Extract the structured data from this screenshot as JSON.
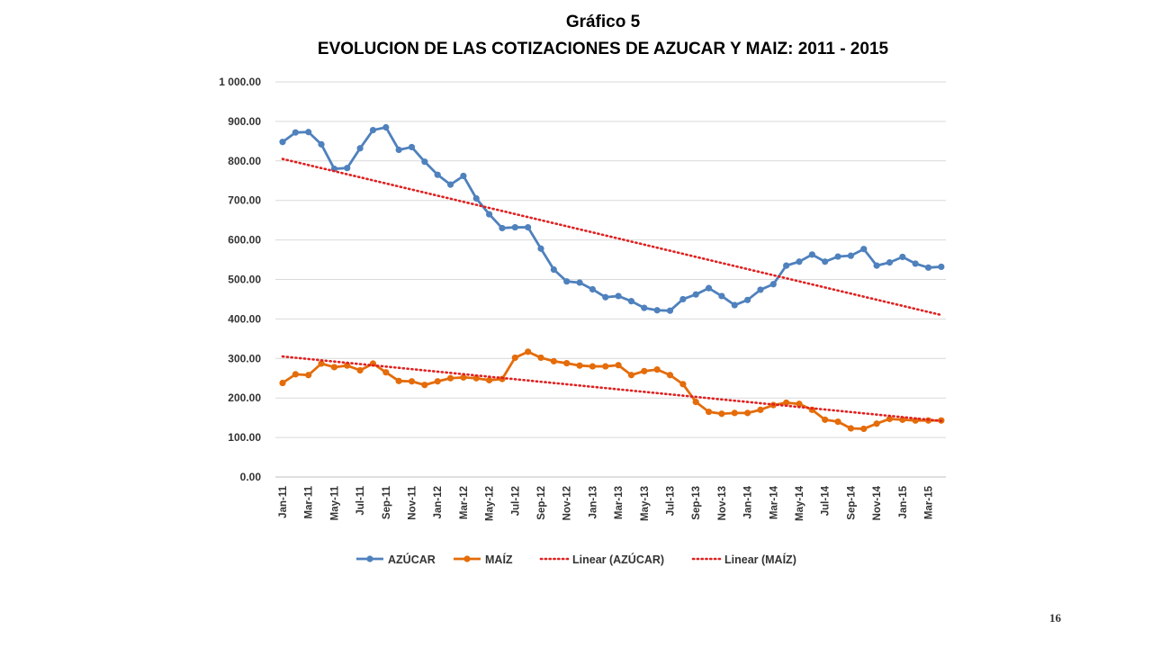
{
  "slide": {
    "page_number": "16"
  },
  "chart_data": {
    "type": "line",
    "title": "Gráfico 5",
    "subtitle": "EVOLUCION DE LAS COTIZACIONES DE AZUCAR Y MAIZ: 2011 - 2015",
    "xlabel": "",
    "ylabel": "",
    "ylim": [
      0,
      1000
    ],
    "yticks": [
      "0.00",
      "100.00",
      "200.00",
      "300.00",
      "400.00",
      "500.00",
      "600.00",
      "700.00",
      "800.00",
      "900.00",
      "1 000.00"
    ],
    "grid": true,
    "legend_position": "bottom",
    "x": [
      "Jan-11",
      "Feb-11",
      "Mar-11",
      "Apr-11",
      "May-11",
      "Jun-11",
      "Jul-11",
      "Aug-11",
      "Sep-11",
      "Oct-11",
      "Nov-11",
      "Dec-11",
      "Jan-12",
      "Feb-12",
      "Mar-12",
      "Apr-12",
      "May-12",
      "Jun-12",
      "Jul-12",
      "Aug-12",
      "Sep-12",
      "Oct-12",
      "Nov-12",
      "Dec-12",
      "Jan-13",
      "Feb-13",
      "Mar-13",
      "Apr-13",
      "May-13",
      "Jun-13",
      "Jul-13",
      "Aug-13",
      "Sep-13",
      "Oct-13",
      "Nov-13",
      "Dec-13",
      "Jan-14",
      "Feb-14",
      "Mar-14",
      "Apr-14",
      "May-14",
      "Jun-14",
      "Jul-14",
      "Aug-14",
      "Sep-14",
      "Oct-14",
      "Nov-14",
      "Dec-14",
      "Jan-15",
      "Feb-15",
      "Mar-15",
      "Apr-15"
    ],
    "x_tick_labels": [
      "Jan-11",
      "Mar-11",
      "May-11",
      "Jul-11",
      "Sep-11",
      "Nov-11",
      "Jan-12",
      "Mar-12",
      "May-12",
      "Jul-12",
      "Sep-12",
      "Nov-12",
      "Jan-13",
      "Mar-13",
      "May-13",
      "Jul-13",
      "Sep-13",
      "Nov-13",
      "Jan-14",
      "Mar-14",
      "May-14",
      "Jul-14",
      "Sep-14",
      "Nov-14",
      "Jan-15",
      "Mar-15"
    ],
    "series": [
      {
        "name": "AZÚCAR",
        "color": "#4f81bd",
        "style": "line-marker",
        "values": [
          848,
          872,
          873,
          842,
          780,
          782,
          832,
          878,
          885,
          828,
          835,
          798,
          765,
          740,
          762,
          705,
          665,
          630,
          632,
          632,
          578,
          525,
          495,
          492,
          475,
          455,
          458,
          445,
          428,
          422,
          421,
          450,
          462,
          478,
          458,
          435,
          448,
          474,
          488,
          535,
          545,
          563,
          545,
          558,
          560,
          577,
          535,
          543,
          557,
          540,
          530,
          532
        ]
      },
      {
        "name": "MAÍZ",
        "color": "#e46c0a",
        "style": "line-marker",
        "values": [
          238,
          260,
          258,
          287,
          278,
          282,
          270,
          287,
          265,
          243,
          242,
          233,
          242,
          250,
          252,
          250,
          245,
          248,
          302,
          317,
          302,
          293,
          288,
          282,
          280,
          280,
          283,
          258,
          268,
          272,
          258,
          235,
          190,
          165,
          160,
          162,
          162,
          170,
          182,
          188,
          185,
          170,
          145,
          140,
          123,
          122,
          135,
          147,
          145,
          143,
          143,
          143
        ]
      },
      {
        "name": "Linear (AZÚCAR)",
        "color": "#e02020",
        "style": "dotted-trendline",
        "start": 805,
        "end": 410
      },
      {
        "name": "Linear (MAÍZ)",
        "color": "#e02020",
        "style": "dotted-trendline",
        "start": 305,
        "end": 142
      }
    ]
  }
}
